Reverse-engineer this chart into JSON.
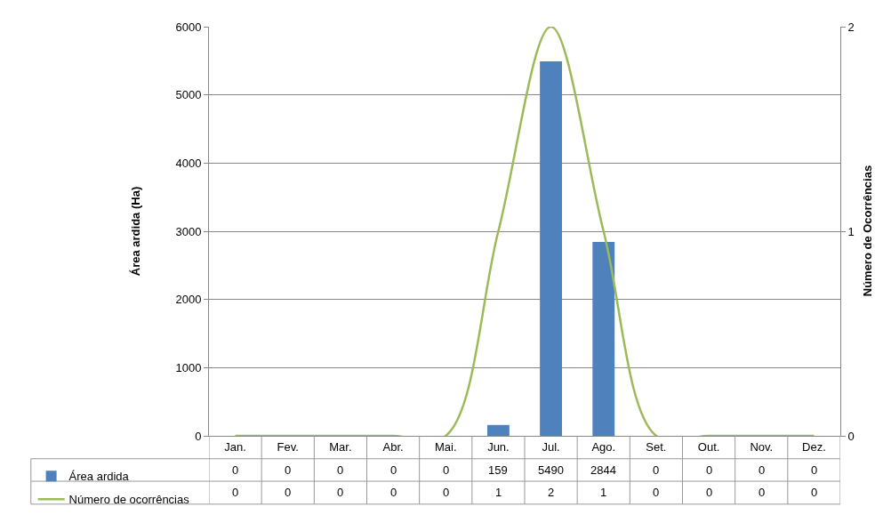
{
  "chart_data": {
    "type": "bar",
    "categories": [
      "Jan.",
      "Fev.",
      "Mar.",
      "Abr.",
      "Mai.",
      "Jun.",
      "Jul.",
      "Ago.",
      "Set.",
      "Out.",
      "Nov.",
      "Dez."
    ],
    "series": [
      {
        "name": "Área ardida",
        "color": "#4f81bd",
        "values": [
          0,
          0,
          0,
          0,
          0,
          159,
          5490,
          2844,
          0,
          0,
          0,
          0
        ]
      },
      {
        "name": "Número de ocorrências",
        "type": "line",
        "axis": "y2",
        "color": "#9bbb59",
        "values": [
          0,
          0,
          0,
          0,
          0,
          1,
          2,
          1,
          0,
          0,
          0,
          0
        ]
      }
    ],
    "ylabel": "Área ardida (Ha)",
    "y2label": "Número de Ocorrências",
    "ylim": [
      0,
      6000
    ],
    "yticks": [
      0,
      1000,
      2000,
      3000,
      4000,
      5000,
      6000
    ],
    "y2lim": [
      0,
      2
    ],
    "y2ticks": [
      0,
      1,
      2
    ],
    "grid": "y",
    "legend": "bottom left",
    "data_labels": true,
    "marker": "none",
    "line_style": "solid"
  }
}
